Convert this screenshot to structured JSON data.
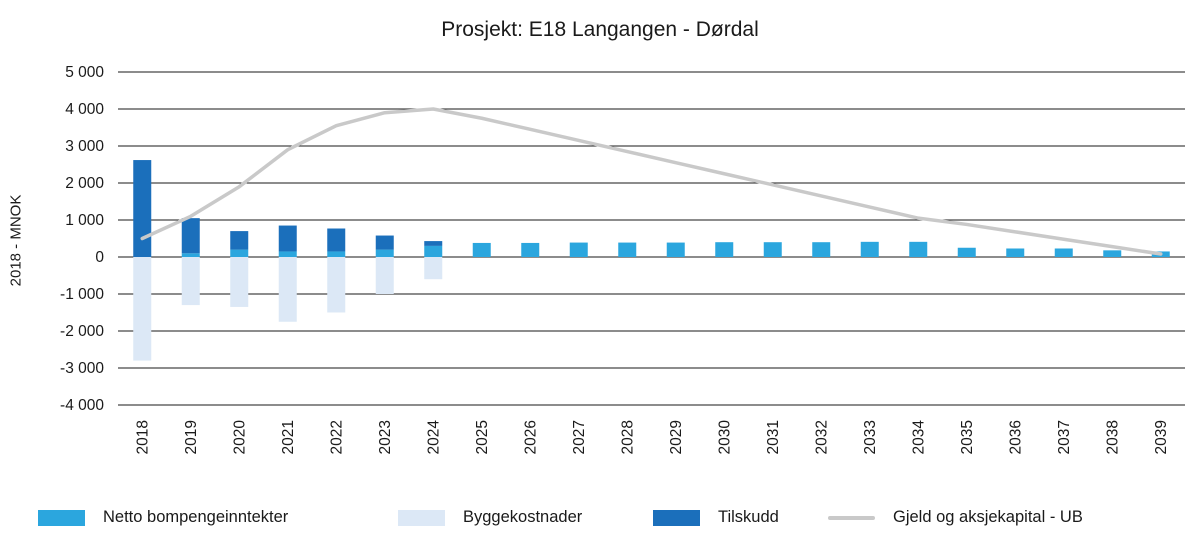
{
  "chart_data": {
    "type": "bar",
    "title": "Prosjekt: E18 Langangen - Dørdal",
    "ylabel": "2018 - MNOK",
    "xlabel": "",
    "ylim": [
      -4000,
      5000
    ],
    "ytick_step": 1000,
    "grid": true,
    "legend_position": "bottom",
    "categories": [
      "2018",
      "2019",
      "2020",
      "2021",
      "2022",
      "2023",
      "2024",
      "2025",
      "2026",
      "2027",
      "2028",
      "2029",
      "2030",
      "2031",
      "2032",
      "2033",
      "2034",
      "2035",
      "2036",
      "2037",
      "2038",
      "2039"
    ],
    "series": [
      {
        "name": "Netto bompengeinntekter",
        "color": "#2BA6DE",
        "values": [
          0,
          100,
          200,
          150,
          150,
          200,
          300,
          380,
          380,
          390,
          390,
          390,
          400,
          400,
          400,
          410,
          410,
          250,
          230,
          230,
          180,
          150
        ]
      },
      {
        "name": "Byggekostnader",
        "color": "#DCE8F6",
        "values": [
          -2800,
          -1300,
          -1350,
          -1750,
          -1500,
          -1000,
          -600,
          0,
          0,
          0,
          0,
          0,
          0,
          0,
          0,
          0,
          0,
          0,
          0,
          0,
          0,
          0
        ]
      },
      {
        "name": "Tilskudd",
        "color": "#1B6FBB",
        "values": [
          2620,
          950,
          500,
          700,
          620,
          380,
          130,
          0,
          0,
          0,
          0,
          0,
          0,
          0,
          0,
          0,
          0,
          0,
          0,
          0,
          0,
          0
        ]
      }
    ],
    "line_series": {
      "name": "Gjeld og aksjekapital - UB",
      "color": "#C9C9C9",
      "values": [
        500,
        1100,
        1900,
        2900,
        3550,
        3900,
        4000,
        3750,
        3450,
        3150,
        2850,
        2550,
        2250,
        1950,
        1650,
        1350,
        1050,
        880,
        680,
        480,
        280,
        80
      ]
    },
    "legend": [
      {
        "label": "Netto bompengeinntekter",
        "color": "#2BA6DE",
        "kind": "bar"
      },
      {
        "label": "Byggekostnader",
        "color": "#DCE8F6",
        "kind": "bar"
      },
      {
        "label": "Tilskudd",
        "color": "#1B6FBB",
        "kind": "bar"
      },
      {
        "label": "Gjeld og aksjekapital - UB",
        "color": "#C9C9C9",
        "kind": "line"
      }
    ]
  }
}
